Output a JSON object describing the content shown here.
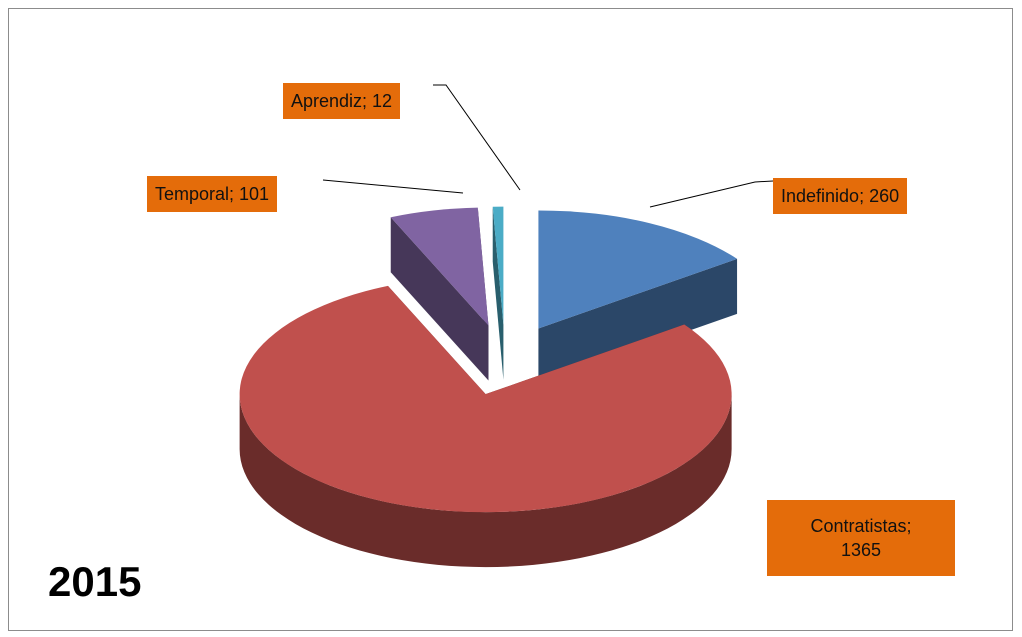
{
  "chart_data": {
    "type": "pie",
    "title": "2015",
    "categories": [
      "Indefinido",
      "Contratistas",
      "Temporal",
      "Aprendiz"
    ],
    "values": [
      260,
      1365,
      101,
      12
    ],
    "value_labels": [
      "Indefinido; 260",
      "Contratistas; 1365",
      "Temporal; 101",
      "Aprendiz; 12"
    ],
    "colors": [
      "#4f81bd",
      "#c0504d",
      "#8064a2",
      "#4bacc6"
    ],
    "exploded": true,
    "three_d": true
  }
}
